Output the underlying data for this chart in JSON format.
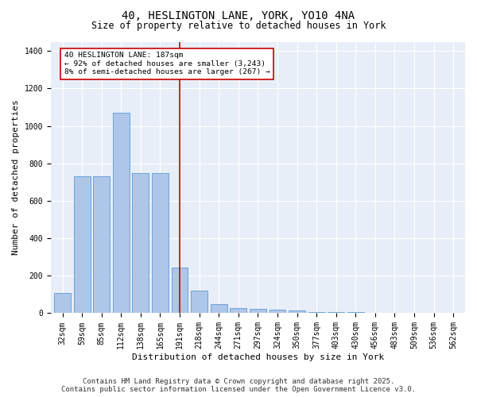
{
  "title_line1": "40, HESLINGTON LANE, YORK, YO10 4NA",
  "title_line2": "Size of property relative to detached houses in York",
  "xlabel": "Distribution of detached houses by size in York",
  "ylabel": "Number of detached properties",
  "bar_color": "#aec6e8",
  "bar_edge_color": "#5b9bd5",
  "background_color": "#e8eef8",
  "grid_color": "#ffffff",
  "categories": [
    "32sqm",
    "59sqm",
    "85sqm",
    "112sqm",
    "138sqm",
    "165sqm",
    "191sqm",
    "218sqm",
    "244sqm",
    "271sqm",
    "297sqm",
    "324sqm",
    "350sqm",
    "377sqm",
    "403sqm",
    "430sqm",
    "456sqm",
    "483sqm",
    "509sqm",
    "536sqm",
    "562sqm"
  ],
  "values": [
    110,
    730,
    730,
    1070,
    750,
    750,
    245,
    120,
    50,
    27,
    25,
    20,
    15,
    8,
    5,
    5,
    3,
    0,
    0,
    0,
    0
  ],
  "vline_x": 6,
  "vline_color": "#cc0000",
  "annotation_text": "40 HESLINGTON LANE: 187sqm\n← 92% of detached houses are smaller (3,243)\n8% of semi-detached houses are larger (267) →",
  "ylim": [
    0,
    1450
  ],
  "yticks": [
    0,
    200,
    400,
    600,
    800,
    1000,
    1200,
    1400
  ],
  "footer": "Contains HM Land Registry data © Crown copyright and database right 2025.\nContains public sector information licensed under the Open Government Licence v3.0.",
  "title_fontsize": 10,
  "subtitle_fontsize": 8.5,
  "label_fontsize": 8,
  "tick_fontsize": 7,
  "footer_fontsize": 6.5
}
